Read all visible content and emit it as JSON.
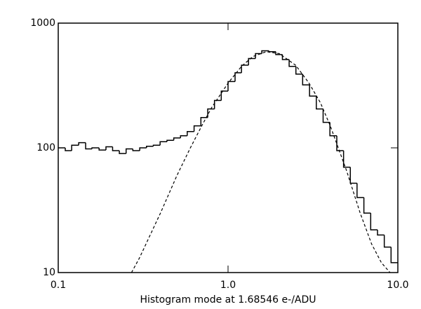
{
  "chart_data": {
    "type": "histogram",
    "xlabel": "Histogram mode at  1.68546 e-/ADU",
    "bins": [
      0.1,
      0.11,
      0.12,
      0.132,
      0.145,
      0.158,
      0.174,
      0.191,
      0.209,
      0.229,
      0.251,
      0.275,
      0.302,
      0.331,
      0.363,
      0.398,
      0.437,
      0.479,
      0.525,
      0.575,
      0.631,
      0.692,
      0.759,
      0.832,
      0.912,
      1.0,
      1.1,
      1.2,
      1.32,
      1.45,
      1.58,
      1.74,
      1.91,
      2.09,
      2.29,
      2.51,
      2.75,
      3.02,
      3.31,
      3.63,
      3.98,
      4.37,
      4.79,
      5.25,
      5.75,
      6.31,
      6.92,
      7.59,
      8.32,
      9.12,
      10.0
    ],
    "counts": [
      100,
      95,
      105,
      110,
      98,
      100,
      96,
      102,
      95,
      90,
      98,
      95,
      100,
      103,
      105,
      112,
      115,
      120,
      125,
      135,
      150,
      175,
      205,
      240,
      285,
      340,
      400,
      460,
      520,
      570,
      600,
      590,
      560,
      510,
      450,
      390,
      320,
      260,
      205,
      160,
      125,
      95,
      70,
      52,
      40,
      30,
      22,
      20,
      16,
      12
    ],
    "color": "#000000",
    "lines": [
      {
        "x": [
          0.27,
          0.3,
          0.4,
          0.5,
          0.6,
          0.7,
          0.8,
          1.0,
          1.2,
          1.4,
          1.68,
          2.0,
          2.5,
          3.0,
          3.5,
          4.0,
          5.0,
          6.0,
          7.0,
          8.0,
          9.0
        ],
        "values": [
          10,
          13,
          30,
          60,
          100,
          150,
          210,
          330,
          450,
          540,
          590,
          570,
          460,
          330,
          230,
          150,
          65,
          30,
          17,
          12,
          10
        ],
        "style": "dashed"
      }
    ],
    "xscale": "log",
    "yscale": "log",
    "xlim": [
      0.1,
      10.0
    ],
    "ylim": [
      10,
      1000
    ],
    "xticks": [
      {
        "value": 0.1,
        "label": "0.1"
      },
      {
        "value": 1.0,
        "label": "1.0"
      },
      {
        "value": 10.0,
        "label": "10.0"
      }
    ],
    "yticks": [
      10,
      100,
      1000
    ]
  }
}
